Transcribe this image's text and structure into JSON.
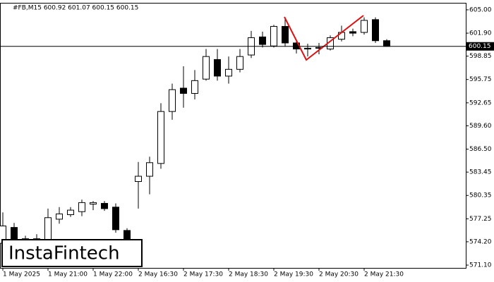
{
  "chart_data": {
    "type": "candlestick",
    "title": "#FB,M15  600.92 601.07 600.15 600.15",
    "watermark": "InstaFintech",
    "categories": [
      "1 May 2025",
      null,
      null,
      null,
      "1 May 21:00",
      null,
      null,
      null,
      "1 May 22:00",
      null,
      null,
      null,
      "2 May 16:30",
      null,
      null,
      null,
      "2 May 17:30",
      null,
      null,
      null,
      "2 May 18:30",
      null,
      null,
      null,
      "2 May 19:30",
      null,
      null,
      null,
      "2 May 20:30",
      null,
      null,
      null,
      "2 May 21:30",
      null,
      null
    ],
    "open": [
      574.0,
      576.1,
      574.5,
      574.6,
      574.5,
      577.2,
      577.8,
      578.2,
      579.2,
      579.3,
      578.8,
      575.7,
      582.2,
      582.9,
      584.6,
      591.5,
      594.6,
      593.9,
      595.8,
      598.4,
      596.2,
      597.1,
      599.0,
      601.4,
      600.2,
      602.8,
      600.6,
      599.8,
      599.9,
      599.8,
      601.1,
      602.1,
      602.0,
      603.7,
      600.9
    ],
    "high": [
      578.1,
      576.7,
      575.0,
      575.2,
      578.6,
      578.8,
      578.8,
      579.8,
      579.6,
      579.6,
      579.3,
      576.0,
      584.8,
      585.5,
      592.6,
      595.2,
      597.5,
      597.0,
      599.8,
      599.8,
      598.8,
      599.8,
      602.2,
      602.1,
      603.0,
      603.9,
      600.9,
      600.5,
      600.6,
      601.6,
      602.9,
      602.5,
      604.0,
      604.0,
      601.1
    ],
    "low": [
      572.0,
      573.5,
      574.0,
      573.8,
      574.0,
      576.6,
      577.5,
      577.6,
      578.4,
      578.3,
      575.4,
      572.0,
      578.6,
      580.5,
      583.9,
      590.4,
      592.0,
      593.1,
      595.6,
      595.6,
      595.2,
      596.7,
      598.6,
      600.0,
      600.0,
      600.1,
      599.2,
      598.8,
      599.1,
      599.6,
      600.8,
      601.5,
      601.7,
      600.6,
      600.1
    ],
    "close": [
      576.3,
      574.5,
      574.6,
      574.3,
      577.4,
      577.9,
      578.4,
      579.4,
      579.4,
      578.6,
      575.8,
      573.5,
      582.9,
      584.7,
      591.5,
      594.4,
      593.9,
      595.6,
      598.8,
      596.2,
      597.1,
      598.8,
      601.3,
      600.4,
      602.8,
      600.6,
      599.8,
      599.9,
      600.0,
      601.3,
      602.0,
      601.9,
      603.6,
      600.9,
      600.15
    ],
    "up_color": "#ffffff",
    "down_color": "#000000",
    "ylim": [
      570.73,
      605.93
    ],
    "yticks": [
      {
        "value": 571.1,
        "label": "571.10"
      },
      {
        "value": 574.2,
        "label": "574.20"
      },
      {
        "value": 577.25,
        "label": "577.25"
      },
      {
        "value": 580.35,
        "label": "580.35"
      },
      {
        "value": 583.45,
        "label": "583.45"
      },
      {
        "value": 586.5,
        "label": "586.50"
      },
      {
        "value": 589.6,
        "label": "589.60"
      },
      {
        "value": 592.65,
        "label": "592.65"
      },
      {
        "value": 595.75,
        "label": "595.75"
      },
      {
        "value": 598.85,
        "label": "598.85"
      },
      {
        "value": 601.9,
        "label": "601.90"
      },
      {
        "value": 605.0,
        "label": "605.00"
      }
    ],
    "last_price": {
      "value": 600.15,
      "label": "600.15"
    }
  }
}
